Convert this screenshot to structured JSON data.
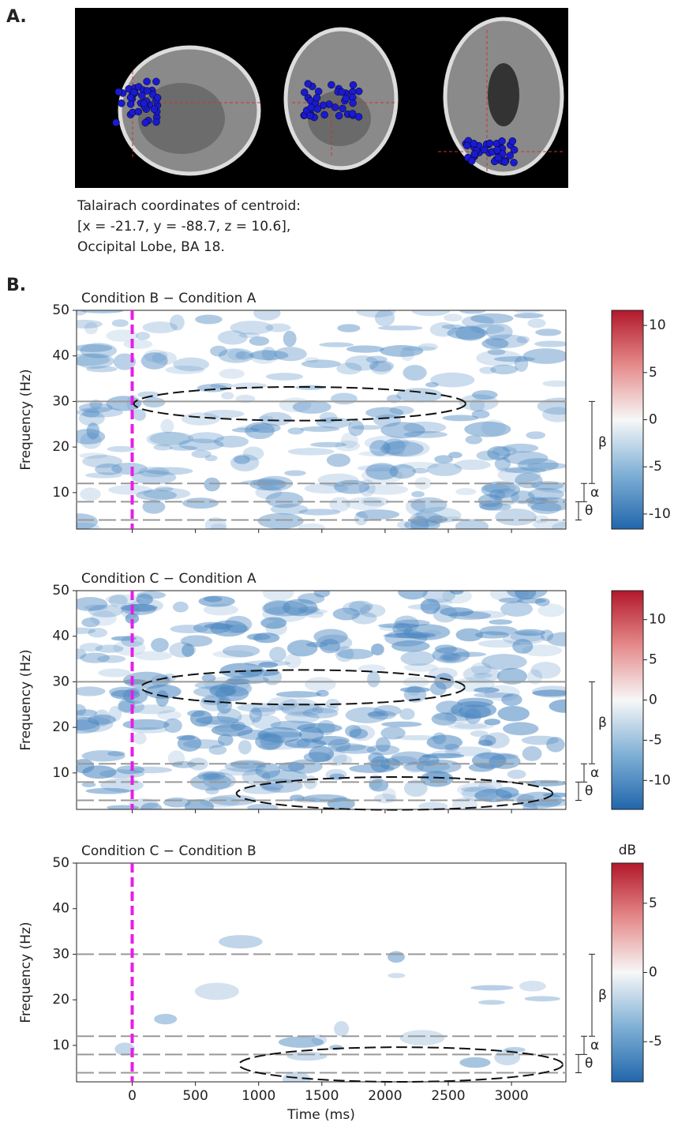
{
  "panel_labels": [
    "A.",
    "B."
  ],
  "panel_a": {
    "caption": [
      "Talairach coordinates of centroid:",
      "[x = -21.7, y = -88.7, z = 10.6],",
      "Occipital Lobe, BA 18."
    ]
  },
  "chart_data": [
    {
      "type": "heatmap",
      "title": "Condition B − Condition A",
      "ylabel": "Frequency (Hz)",
      "xlim": [
        -440,
        3430
      ],
      "ylim": [
        2,
        50
      ],
      "yticks": [
        10,
        20,
        30,
        40,
        50
      ],
      "marker_x": 0,
      "hlines": [
        30,
        12,
        8,
        4
      ],
      "bands": [
        {
          "label": "β",
          "from": 12,
          "to": 30
        },
        {
          "label": "α",
          "from": 8,
          "to": 12
        },
        {
          "label": "θ",
          "from": 4,
          "to": 8
        }
      ],
      "regions": [
        {
          "x": 1325,
          "y": 29.5,
          "rx": 1312,
          "ry": 3.7
        }
      ],
      "clim": [
        -11.6,
        11.6
      ],
      "cticks": [
        10,
        5,
        0,
        -5,
        -10
      ]
    },
    {
      "type": "heatmap",
      "title": "Condition C − Condition A",
      "ylabel": "Frequency (Hz)",
      "xlim": [
        -440,
        3430
      ],
      "ylim": [
        2,
        50
      ],
      "yticks": [
        10,
        20,
        30,
        40,
        50
      ],
      "marker_x": 0,
      "hlines": [
        30,
        12,
        8,
        4
      ],
      "bands": [
        {
          "label": "β",
          "from": 12,
          "to": 30
        },
        {
          "label": "α",
          "from": 8,
          "to": 12
        },
        {
          "label": "θ",
          "from": 4,
          "to": 8
        }
      ],
      "regions": [
        {
          "x": 1350,
          "y": 28.8,
          "rx": 1280,
          "ry": 3.8
        },
        {
          "x": 2075,
          "y": 5.5,
          "rx": 1250,
          "ry": 3.6
        }
      ],
      "clim": [
        -13.6,
        13.6
      ],
      "cticks": [
        10,
        5,
        0,
        -5,
        -10
      ]
    },
    {
      "type": "heatmap",
      "title": "Condition C − Condition B",
      "ylabel": "Frequency (Hz)",
      "xlabel": "Time (ms)",
      "xlim": [
        -440,
        3430
      ],
      "ylim": [
        2,
        50
      ],
      "yticks": [
        10,
        20,
        30,
        40,
        50
      ],
      "xticks": [
        0,
        500,
        1000,
        1500,
        2000,
        2500,
        3000
      ],
      "marker_x": 0,
      "hlines": [
        30,
        12,
        8,
        4
      ],
      "bands": [
        {
          "label": "β",
          "from": 12,
          "to": 30
        },
        {
          "label": "α",
          "from": 8,
          "to": 12
        },
        {
          "label": "θ",
          "from": 4,
          "to": 8
        }
      ],
      "regions": [
        {
          "x": 2125,
          "y": 5.8,
          "rx": 1280,
          "ry": 3.8
        }
      ],
      "clim": [
        -7.9,
        7.9
      ],
      "cticks": [
        5,
        0,
        -5
      ],
      "colorbar_label": "dB"
    }
  ]
}
